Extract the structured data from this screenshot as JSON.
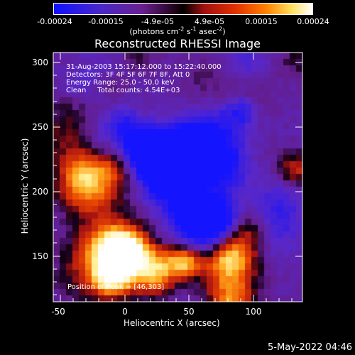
{
  "colorbar": {
    "tick_labels": [
      "-0.00024",
      "-0.00015",
      "-4.9e-05",
      "4.9e-05",
      "0.00015",
      "0.00024"
    ],
    "units_prefix": "(photons cm",
    "units_exp1": "-2",
    "units_mid": " s",
    "units_exp2": "-1",
    "units_mid2": " asec",
    "units_exp3": "-2",
    "units_suffix": ")",
    "colors": [
      "#1010ff",
      "#6a2090",
      "#000000",
      "#b01010",
      "#ff6a00",
      "#ffffa0",
      "#ffffff"
    ]
  },
  "plot": {
    "title": "Reconstructed RHESSI Image",
    "x_axis_label": "Heliocentric X (arcsec)",
    "y_axis_label": "Heliocentric Y (arcsec)",
    "x_ticks": [
      "-50",
      "0",
      "50",
      "100"
    ],
    "y_ticks": [
      "300",
      "250",
      "200",
      "150"
    ],
    "x_range": [
      -57,
      137
    ],
    "y_range": [
      115,
      307
    ]
  },
  "info": {
    "line1": "31-Aug-2003 15:17:12.000 to 15:22:40.000",
    "line2": "Detectors: 3F 4F 5F 6F 7F 8F, Att 0",
    "line3": "Energy Range: 25.0 - 50.0 keV",
    "line4": "Clean     Total counts: 4.54E+03",
    "peak": "Position of Peak = [46,303]"
  },
  "footer": {
    "date": "5-May-2022 04:46"
  }
}
